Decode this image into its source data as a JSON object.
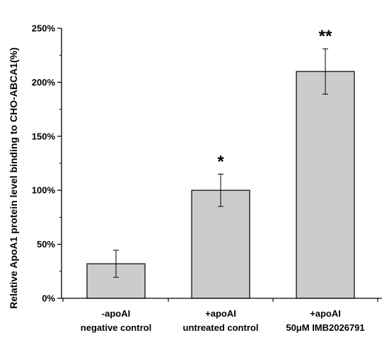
{
  "chart_data": {
    "type": "bar",
    "categories": [
      {
        "line1": "-apoAI",
        "line2": "negative control"
      },
      {
        "line1": "+apoAI",
        "line2": "untreated control"
      },
      {
        "line1": "+apoAI",
        "line2": "50μM IMB2026791"
      }
    ],
    "values": [
      32,
      100,
      210
    ],
    "errors": [
      12.5,
      15,
      21
    ],
    "annotations": [
      "",
      "*",
      "**"
    ],
    "ylabel": "Relative  ApoA1 protein level binding to CHO-ABCA1(%)",
    "ylim": [
      0,
      250
    ],
    "yticks": [
      0,
      50,
      100,
      150,
      200,
      250
    ],
    "ytick_labels": [
      "0%",
      "50%",
      "100%",
      "150%",
      "200%",
      "250%"
    ],
    "bar_color": "#cccccc",
    "grid": false,
    "legend": "none"
  }
}
